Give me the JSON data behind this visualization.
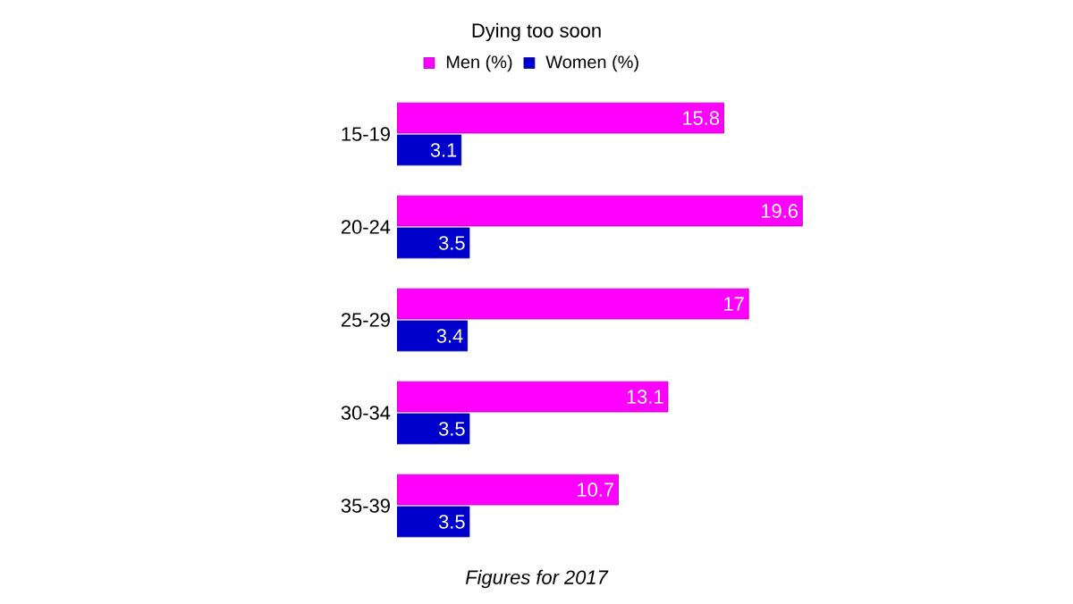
{
  "chart_data": {
    "type": "bar",
    "orientation": "horizontal",
    "title": "Dying too soon",
    "categories": [
      "15-19",
      "20-24",
      "25-29",
      "30-34",
      "35-39"
    ],
    "series": [
      {
        "name": "Men (%)",
        "color": "#ff00ff",
        "values": [
          15.8,
          19.6,
          17,
          13.1,
          10.7
        ]
      },
      {
        "name": "Women (%)",
        "color": "#0000cc",
        "values": [
          3.1,
          3.5,
          3.4,
          3.5,
          3.5
        ]
      }
    ],
    "data_labels": true,
    "legend": "top",
    "annotations": [
      "Figures for 2017"
    ]
  }
}
